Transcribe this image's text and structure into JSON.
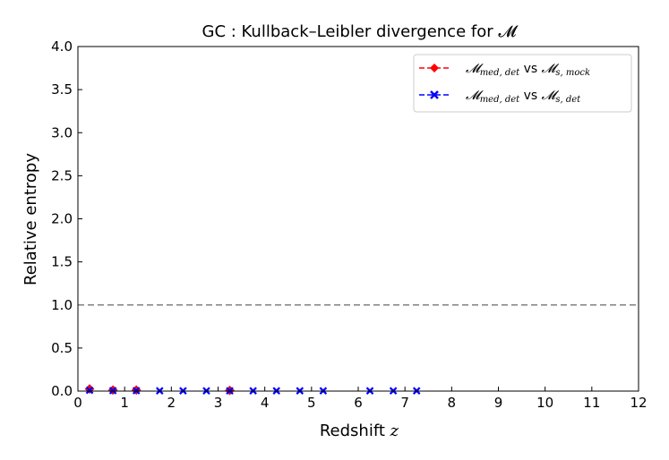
{
  "chart_data": {
    "type": "line",
    "title": "GC : Kullback–Leibler divergence for 𝓜",
    "xlabel": "Redshift z",
    "ylabel": "Relative entropy",
    "xlim": [
      0,
      12
    ],
    "ylim": [
      0,
      4.0
    ],
    "x_ticks": [
      "0",
      "1",
      "2",
      "3",
      "4",
      "5",
      "6",
      "7",
      "8",
      "9",
      "10",
      "11",
      "12"
    ],
    "y_ticks": [
      "0.0",
      "0.5",
      "1.0",
      "1.5",
      "2.0",
      "2.5",
      "3.0",
      "3.5",
      "4.0"
    ],
    "threshold": {
      "y": 1.0,
      "style": "dashed",
      "color": "#808080"
    },
    "legend_position": "top-right",
    "series": [
      {
        "name": "𝓜_med,det vs 𝓜_s,mock",
        "color": "#ff0000",
        "marker": "diamond",
        "points": [
          {
            "x": 0.25,
            "y": 0.025
          },
          {
            "x": 0.75,
            "y": 0.012
          },
          {
            "x": 1.25,
            "y": 0.012
          },
          {
            "x": 3.25,
            "y": 0.008
          }
        ]
      },
      {
        "name": "𝓜_med,det vs 𝓜_s,det",
        "color": "#0000ff",
        "marker": "x",
        "points": [
          {
            "x": 0.25,
            "y": 0.01
          },
          {
            "x": 0.75,
            "y": 0.005
          },
          {
            "x": 1.25,
            "y": 0.005
          },
          {
            "x": 1.75,
            "y": 0.003
          },
          {
            "x": 2.25,
            "y": 0.003
          },
          {
            "x": 2.75,
            "y": 0.003
          },
          {
            "x": 3.25,
            "y": 0.003
          },
          {
            "x": 3.75,
            "y": 0.003
          },
          {
            "x": 4.25,
            "y": 0.003
          },
          {
            "x": 4.75,
            "y": 0.003
          },
          {
            "x": 5.25,
            "y": 0.003
          },
          {
            "x": 6.25,
            "y": 0.003
          },
          {
            "x": 6.75,
            "y": 0.003
          },
          {
            "x": 7.25,
            "y": 0.003
          }
        ]
      }
    ],
    "legend": {
      "entry1": {
        "a": "𝓜",
        "a_sub": "med, det",
        "vs": " vs ",
        "b": "𝓜",
        "b_sub": "s, mock"
      },
      "entry2": {
        "a": "𝓜",
        "a_sub": "med, det",
        "vs": " vs ",
        "b": "𝓜",
        "b_sub": "s, det"
      }
    }
  }
}
